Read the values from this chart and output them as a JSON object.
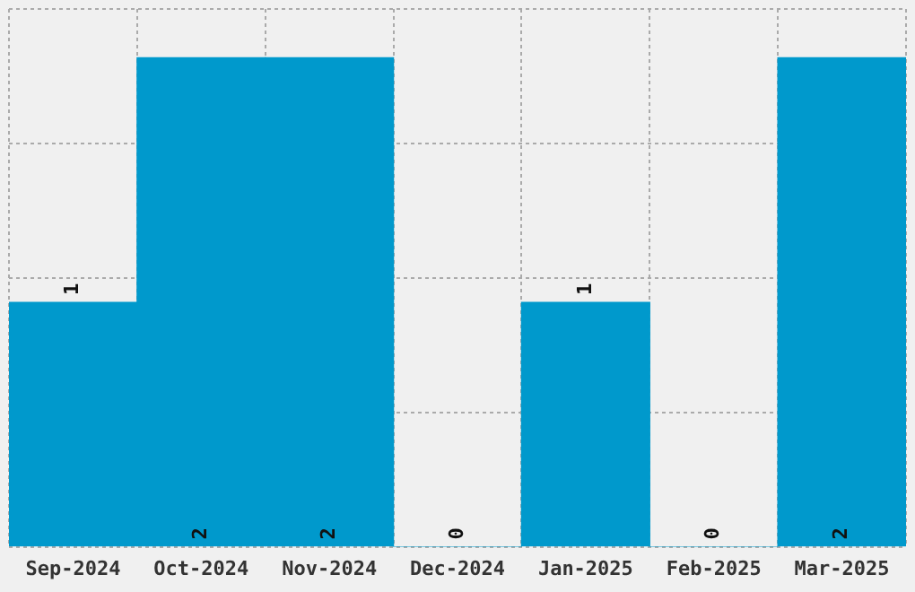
{
  "chart_data": {
    "type": "bar",
    "categories": [
      "Sep-2024",
      "Oct-2024",
      "Nov-2024",
      "Dec-2024",
      "Jan-2025",
      "Feb-2025",
      "Mar-2025"
    ],
    "values": [
      1,
      2,
      2,
      0,
      1,
      0,
      2
    ],
    "color": "#0099cc",
    "ylim": [
      0,
      2.2
    ],
    "yticks": [
      {
        "value": 0,
        "label": null
      },
      {
        "value": 0.55,
        "label": null
      },
      {
        "value": 1.1,
        "label": null
      },
      {
        "value": 1.65,
        "label": null
      },
      {
        "value": 2.2,
        "label": null
      }
    ],
    "grid": true,
    "tick_labels": "x",
    "data_labels": true,
    "legend": false
  }
}
